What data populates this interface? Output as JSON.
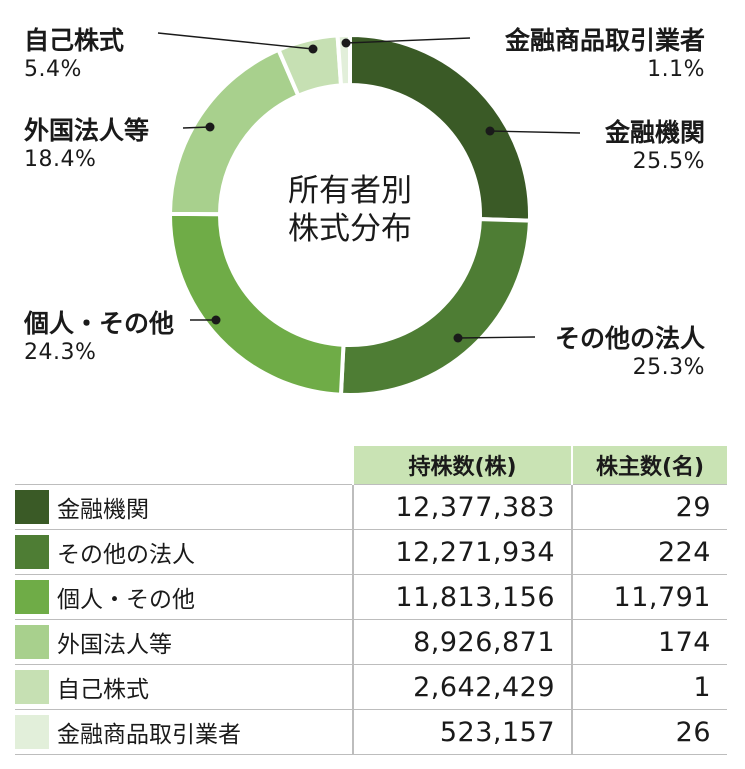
{
  "chart_data": {
    "type": "pie",
    "title": "所有者別\n株式分布",
    "title_lines": [
      "所有者別",
      "株式分布"
    ],
    "legend": "none",
    "slices": [
      {
        "name": "金融機関",
        "percent": 25.5,
        "percent_label": "25.5%",
        "color": "#3a5a26"
      },
      {
        "name": "その他の法人",
        "percent": 25.3,
        "percent_label": "25.3%",
        "color": "#4e7d34"
      },
      {
        "name": "個人・その他",
        "percent": 24.3,
        "percent_label": "24.3%",
        "color": "#6fac47"
      },
      {
        "name": "外国法人等",
        "percent": 18.4,
        "percent_label": "18.4%",
        "color": "#a8d08d"
      },
      {
        "name": "自己株式",
        "percent": 5.4,
        "percent_label": "5.4%",
        "color": "#c6e0b3"
      },
      {
        "name": "金融商品取引業者",
        "percent": 1.1,
        "percent_label": "1.1%",
        "color": "#e2efda"
      }
    ]
  },
  "table": {
    "headers": [
      "持株数(株)",
      "株主数(名)"
    ],
    "rows": [
      {
        "category": "金融機関",
        "shares": "12,377,383",
        "holders": "29",
        "color": "#3a5a26"
      },
      {
        "category": "その他の法人",
        "shares": "12,271,934",
        "holders": "224",
        "color": "#4e7d34"
      },
      {
        "category": "個人・その他",
        "shares": "11,813,156",
        "holders": "11,791",
        "color": "#6fac47"
      },
      {
        "category": "外国法人等",
        "shares": "8,926,871",
        "holders": "174",
        "color": "#a8d08d"
      },
      {
        "category": "自己株式",
        "shares": "2,642,429",
        "holders": "1",
        "color": "#c6e0b3"
      },
      {
        "category": "金融商品取引業者",
        "shares": "523,157",
        "holders": "26",
        "color": "#e2efda"
      }
    ]
  }
}
